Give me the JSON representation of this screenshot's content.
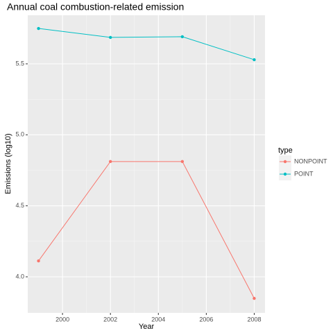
{
  "chart_data": {
    "type": "line",
    "title": "Annual coal combustion-related emission",
    "x_label": "Year",
    "y_label": "Emissions (log10)",
    "legend_title": "type",
    "legend_position": "right",
    "grid": true,
    "x": [
      1999,
      2002,
      2005,
      2008
    ],
    "series": [
      {
        "name": "NONPOINT",
        "color": "#F8766D",
        "values": [
          4.112,
          4.812,
          4.812,
          3.848
        ]
      },
      {
        "name": "POINT",
        "color": "#00BFC4",
        "values": [
          5.749,
          5.686,
          5.691,
          5.529
        ]
      }
    ],
    "xlim": [
      1998.55,
      2008.45
    ],
    "xticks": [
      2000,
      2002,
      2004,
      2006,
      2008
    ],
    "ylim": [
      3.746,
      5.842
    ],
    "yticks": [
      {
        "value": 4,
        "label": "4.0"
      },
      4.5,
      {
        "value": 5,
        "label": "5.0"
      },
      5.5
    ]
  }
}
